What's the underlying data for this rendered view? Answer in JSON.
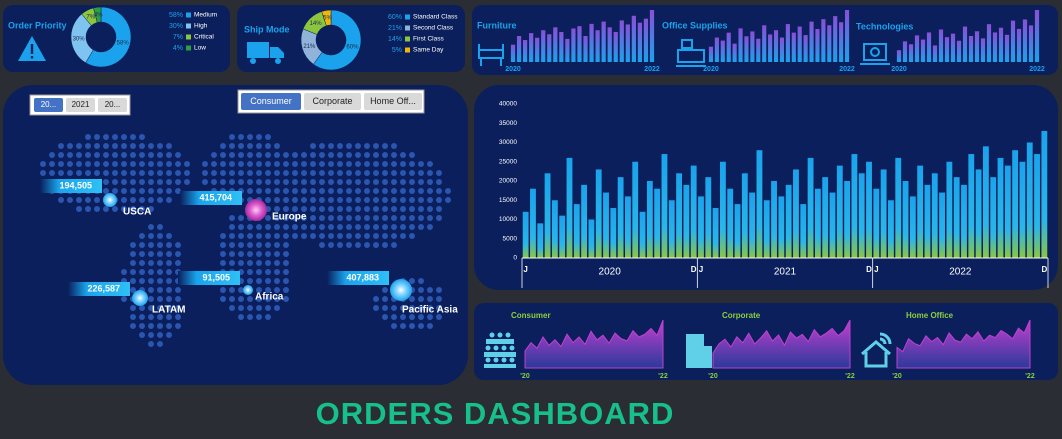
{
  "title": "ORDERS DASHBOARD",
  "chart_data": [
    {
      "type": "donut",
      "title": "Order Priority",
      "categories": [
        "Medium",
        "High",
        "Critical",
        "Low"
      ],
      "values": [
        58,
        30,
        7,
        4
      ],
      "value_labels": [
        "58%",
        "30%",
        "7%",
        "4%"
      ],
      "colors": [
        "#1aa3ec",
        "#7fc4f0",
        "#8cc63f",
        "#2e9e44"
      ]
    },
    {
      "type": "donut",
      "title": "Ship Mode",
      "categories": [
        "Standard Class",
        "Second Class",
        "First Class",
        "Same Day"
      ],
      "values": [
        60,
        21,
        14,
        5
      ],
      "value_labels": [
        "60%",
        "21%",
        "14%",
        "5%"
      ],
      "colors": [
        "#1aa3ec",
        "#8fb3d9",
        "#8cc63f",
        "#f2b705"
      ]
    },
    {
      "type": "bar",
      "title": "Furniture",
      "categories": [
        "2020",
        null,
        null,
        null,
        null,
        null,
        null,
        null,
        null,
        null,
        null,
        null,
        null,
        null,
        null,
        null,
        null,
        null,
        null,
        null,
        null,
        null,
        null,
        "2022"
      ],
      "values": [
        30,
        45,
        38,
        50,
        42,
        55,
        48,
        60,
        52,
        40,
        58,
        62,
        45,
        66,
        55,
        70,
        60,
        52,
        72,
        65,
        80,
        68,
        75,
        90
      ],
      "color": "#7b5cd6"
    },
    {
      "type": "bar",
      "title": "Office Supplies",
      "categories": [
        "2020",
        null,
        null,
        null,
        null,
        null,
        null,
        null,
        null,
        null,
        null,
        null,
        null,
        null,
        null,
        null,
        null,
        null,
        null,
        null,
        null,
        null,
        null,
        "2022"
      ],
      "values": [
        25,
        40,
        35,
        48,
        30,
        55,
        42,
        50,
        38,
        60,
        45,
        52,
        40,
        62,
        48,
        58,
        44,
        66,
        54,
        70,
        60,
        75,
        65,
        85
      ],
      "color": "#7b5cd6"
    },
    {
      "type": "bar",
      "title": "Technologies",
      "categories": [
        "2020",
        null,
        null,
        null,
        null,
        null,
        null,
        null,
        null,
        null,
        null,
        null,
        null,
        null,
        null,
        null,
        null,
        null,
        null,
        null,
        null,
        null,
        null,
        "2022"
      ],
      "values": [
        20,
        35,
        30,
        45,
        38,
        50,
        28,
        55,
        42,
        48,
        36,
        60,
        44,
        52,
        40,
        64,
        50,
        58,
        46,
        70,
        56,
        72,
        62,
        88
      ],
      "color": "#7b5cd6"
    },
    {
      "type": "bar",
      "categories": [
        "J",
        null,
        null,
        null,
        null,
        null,
        null,
        null,
        null,
        null,
        null,
        null,
        null,
        null,
        null,
        null,
        null,
        null,
        null,
        null,
        null,
        null,
        null,
        "D",
        "J",
        null,
        null,
        null,
        null,
        null,
        null,
        null,
        null,
        null,
        null,
        null,
        null,
        null,
        null,
        null,
        null,
        null,
        null,
        null,
        null,
        null,
        null,
        "D",
        "J",
        null,
        null,
        null,
        null,
        null,
        null,
        null,
        null,
        null,
        null,
        null,
        null,
        null,
        null,
        null,
        null,
        null,
        null,
        null,
        null,
        null,
        null,
        "D"
      ],
      "x_groups": [
        "2020",
        "2021",
        "2022"
      ],
      "values": [
        12000,
        18000,
        9000,
        22000,
        15000,
        11000,
        26000,
        14000,
        19000,
        10000,
        23000,
        17000,
        13000,
        21000,
        16000,
        25000,
        12000,
        20000,
        18000,
        27000,
        15000,
        22000,
        19000,
        24000,
        16000,
        21000,
        13000,
        25000,
        18000,
        14000,
        22000,
        17000,
        28000,
        15000,
        20000,
        16000,
        19000,
        23000,
        14000,
        26000,
        18000,
        21000,
        17000,
        24000,
        20000,
        27000,
        22000,
        25000,
        18000,
        23000,
        15000,
        26000,
        20000,
        16000,
        24000,
        19000,
        22000,
        17000,
        25000,
        21000,
        19000,
        27000,
        23000,
        29000,
        21000,
        26000,
        24000,
        28000,
        25000,
        30000,
        27000,
        33000
      ],
      "color": "#1aa3ec",
      "ylim": [
        0,
        40000
      ],
      "yticks": [
        0,
        5000,
        10000,
        15000,
        20000,
        25000,
        30000,
        35000,
        40000
      ],
      "grid": false
    },
    {
      "type": "area",
      "title": "Consumer",
      "categories": [
        "'20",
        null,
        null,
        null,
        null,
        null,
        null,
        null,
        null,
        null,
        null,
        null,
        null,
        null,
        null,
        null,
        null,
        null,
        null,
        null,
        null,
        null,
        null,
        "'22"
      ],
      "values": [
        30,
        45,
        35,
        55,
        40,
        50,
        38,
        60,
        45,
        55,
        42,
        65,
        50,
        58,
        44,
        62,
        52,
        48,
        66,
        55,
        60,
        70,
        58,
        85
      ],
      "color": "#c13fd0"
    },
    {
      "type": "area",
      "title": "Corporate",
      "categories": [
        "'20",
        null,
        null,
        null,
        null,
        null,
        null,
        null,
        null,
        null,
        null,
        null,
        null,
        null,
        null,
        null,
        null,
        null,
        null,
        null,
        null,
        null,
        null,
        "'22"
      ],
      "values": [
        25,
        40,
        48,
        35,
        52,
        42,
        58,
        40,
        50,
        62,
        45,
        55,
        38,
        60,
        50,
        56,
        44,
        64,
        52,
        58,
        66,
        54,
        62,
        80
      ],
      "color": "#c13fd0"
    },
    {
      "type": "area",
      "title": "Home Office",
      "categories": [
        "'20",
        null,
        null,
        null,
        null,
        null,
        null,
        null,
        null,
        null,
        null,
        null,
        null,
        null,
        null,
        null,
        null,
        null,
        null,
        null,
        null,
        null,
        null,
        "'22"
      ],
      "values": [
        35,
        28,
        50,
        42,
        38,
        55,
        45,
        52,
        40,
        60,
        48,
        44,
        58,
        50,
        62,
        46,
        56,
        52,
        64,
        58,
        50,
        68,
        60,
        82
      ],
      "color": "#c13fd0"
    }
  ],
  "slicers": {
    "years": [
      "20...",
      "2021",
      "20..."
    ],
    "segments": [
      "Consumer",
      "Corporate",
      "Home Off..."
    ]
  },
  "map": {
    "regions": [
      {
        "name": "USCA",
        "total": "194,505"
      },
      {
        "name": "Europe",
        "total": "415,704"
      },
      {
        "name": "Africa",
        "total": "91,505"
      },
      {
        "name": "LATAM",
        "total": "226,587"
      },
      {
        "name": "Pacific Asia",
        "total": "407,883"
      }
    ]
  }
}
